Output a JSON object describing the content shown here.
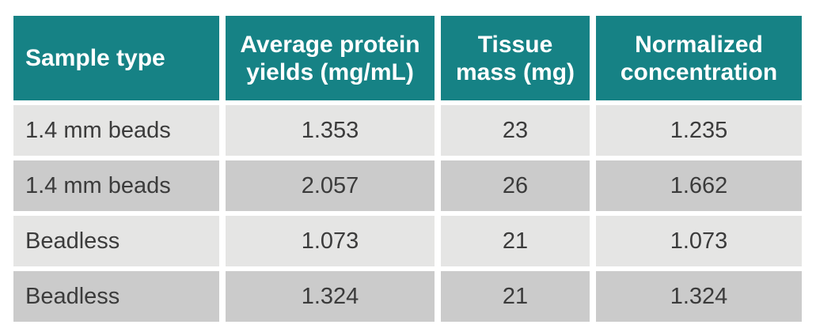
{
  "chart_data": {
    "type": "table",
    "title": "",
    "columns": [
      "Sample type",
      "Average protein yields (mg/mL)",
      "Tissue mass (mg)",
      "Normalized concentration"
    ],
    "rows": [
      [
        "1.4 mm beads",
        "1.353",
        "23",
        "1.235"
      ],
      [
        "1.4 mm beads",
        "2.057",
        "26",
        "1.662"
      ],
      [
        "Beadless",
        "1.073",
        "21",
        "1.073"
      ],
      [
        "Beadless",
        "1.324",
        "21",
        "1.324"
      ]
    ]
  },
  "table": {
    "headers": {
      "sample_type": "Sample type",
      "avg_protein_yields": "Average protein yields (mg/mL)",
      "tissue_mass": "Tissue mass (mg)",
      "normalized_concentration": "Normalized concentration"
    },
    "rows": [
      {
        "cells": [
          "1.4 mm beads",
          "1.353",
          "23",
          "1.235"
        ]
      },
      {
        "cells": [
          "1.4 mm beads",
          "2.057",
          "26",
          "1.662"
        ]
      },
      {
        "cells": [
          "Beadless",
          "1.073",
          "21",
          "1.073"
        ]
      },
      {
        "cells": [
          "Beadless",
          "1.324",
          "21",
          "1.324"
        ]
      }
    ],
    "colors": {
      "header_bg": "#168285",
      "header_text": "#FFFFFF",
      "row_light": "#E5E5E4",
      "row_dark": "#CBCBCB",
      "body_text": "#3B3B3B",
      "page_bg": "#FFFFFF"
    }
  }
}
